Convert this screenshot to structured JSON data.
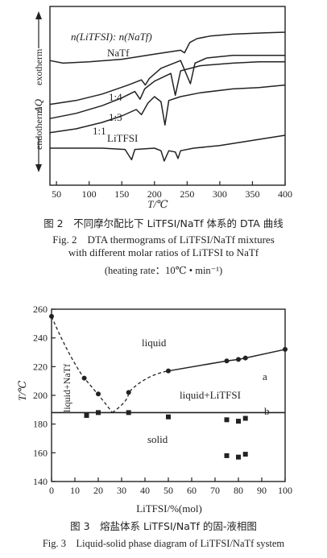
{
  "figure2": {
    "chart_data": {
      "type": "line",
      "xlabel": "T/℃",
      "ylabel_mid": "ΔQ",
      "ylabel_top": "exotherm",
      "ylabel_bottom": "endotherm",
      "xlim": [
        40,
        400
      ],
      "xticks": [
        50,
        100,
        150,
        200,
        250,
        300,
        350,
        400
      ],
      "annotation": "n(LiTFSI): n(NaTf)",
      "series": [
        {
          "name": "NaTf",
          "x": [
            40,
            60,
            100,
            150,
            200,
            240,
            246,
            254,
            265,
            285,
            320,
            370,
            400
          ],
          "y": [
            0.78,
            0.76,
            0.77,
            0.79,
            0.83,
            0.86,
            0.84,
            0.92,
            0.95,
            0.97,
            0.985,
            0.995,
            1.0
          ]
        },
        {
          "name": "1:4",
          "x": [
            40,
            80,
            120,
            160,
            180,
            186,
            192,
            210,
            240,
            255,
            262,
            280,
            320,
            360,
            400
          ],
          "y": [
            0.44,
            0.47,
            0.52,
            0.59,
            0.63,
            0.59,
            0.64,
            0.72,
            0.78,
            0.6,
            0.76,
            0.8,
            0.82,
            0.82,
            0.82
          ]
        },
        {
          "name": "1:3",
          "x": [
            40,
            80,
            120,
            150,
            170,
            178,
            185,
            200,
            225,
            232,
            240,
            270,
            320,
            360,
            400
          ],
          "y": [
            0.33,
            0.37,
            0.43,
            0.49,
            0.54,
            0.48,
            0.56,
            0.62,
            0.68,
            0.51,
            0.7,
            0.74,
            0.76,
            0.77,
            0.77
          ]
        },
        {
          "name": "1:1",
          "x": [
            40,
            80,
            120,
            150,
            172,
            180,
            190,
            200,
            210,
            216,
            222,
            240,
            270,
            320,
            360,
            400
          ],
          "y": [
            0.22,
            0.25,
            0.3,
            0.35,
            0.4,
            0.36,
            0.45,
            0.5,
            0.46,
            0.28,
            0.47,
            0.5,
            0.53,
            0.56,
            0.57,
            0.59
          ]
        },
        {
          "name": "LiTFSI",
          "x": [
            40,
            80,
            120,
            155,
            160,
            165,
            170,
            200,
            210,
            215,
            222,
            232,
            236,
            240,
            260,
            300,
            350,
            400
          ],
          "y": [
            0.1,
            0.1,
            0.1,
            0.09,
            0.05,
            0.01,
            0.09,
            0.1,
            0.08,
            0.0,
            0.08,
            0.07,
            0.02,
            0.08,
            0.1,
            0.12,
            0.16,
            0.2
          ]
        }
      ]
    },
    "caption_cn": "图 2　不同摩尔配比下 LiTFSI/NaTf 体系的 DTA 曲线",
    "caption_en_line1": "Fig. 2　DTA thermograms of LiTFSI/NaTf mixtures",
    "caption_en_line2": "with different molar ratios of LiTFSI to NaTf",
    "caption_en_line3": "(heating rate：10℃ • min⁻¹)"
  },
  "figure3": {
    "chart_data": {
      "type": "scatter",
      "xlabel": "LiTFSI/%(mol)",
      "ylabel": "T/℃",
      "xlim": [
        0,
        100
      ],
      "ylim": [
        140,
        260
      ],
      "xticks": [
        0,
        10,
        20,
        30,
        40,
        50,
        60,
        70,
        80,
        90,
        100
      ],
      "yticks": [
        140,
        160,
        180,
        200,
        220,
        240,
        260
      ],
      "liquidus_points": [
        {
          "x": 0,
          "y": 255
        },
        {
          "x": 14,
          "y": 212
        },
        {
          "x": 20,
          "y": 201
        },
        {
          "x": 33,
          "y": 202
        },
        {
          "x": 50,
          "y": 217
        },
        {
          "x": 75,
          "y": 224
        },
        {
          "x": 80,
          "y": 225
        },
        {
          "x": 83,
          "y": 226
        },
        {
          "x": 100,
          "y": 232
        }
      ],
      "solid_points": [
        {
          "x": 15,
          "y": 186
        },
        {
          "x": 20,
          "y": 188
        },
        {
          "x": 33,
          "y": 188
        },
        {
          "x": 50,
          "y": 185
        },
        {
          "x": 75,
          "y": 183
        },
        {
          "x": 80,
          "y": 182
        },
        {
          "x": 83,
          "y": 184
        },
        {
          "x": 75,
          "y": 158
        },
        {
          "x": 80,
          "y": 157
        },
        {
          "x": 83,
          "y": 159
        }
      ],
      "eutectic_temperature": 188,
      "region_labels": {
        "liquid": "liquid",
        "liquid_naf": "liquid+NaTf",
        "liquid_li": "liquid+LiTFSI",
        "solid": "solid"
      },
      "line_labels": {
        "a": "a",
        "b": "b"
      }
    },
    "caption_cn": "图 3　熔盐体系 LiTFSI/NaTf 的固-液相图",
    "caption_en": "Fig. 3　Liquid-solid phase diagram of LiTFSI/NaTf system"
  }
}
